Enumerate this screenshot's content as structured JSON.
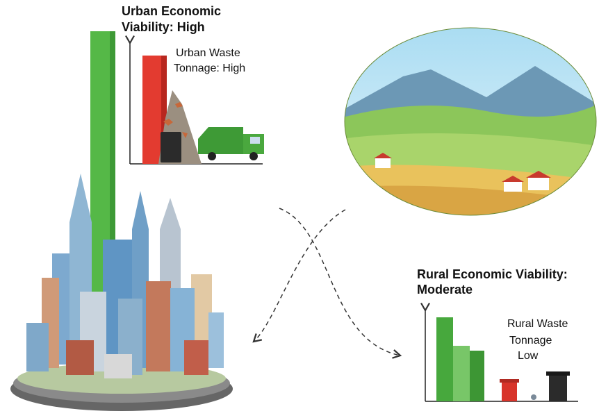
{
  "urban": {
    "viability_label": [
      "Urban Economic",
      "Viability: High"
    ],
    "waste_label": [
      "Urban Waste",
      "Tonnage: High"
    ]
  },
  "rural": {
    "viability_label": [
      "Rural Economic Viability:",
      "Moderate"
    ],
    "waste_label": [
      "Rural Waste",
      "Tonnage",
      "Low"
    ]
  }
}
